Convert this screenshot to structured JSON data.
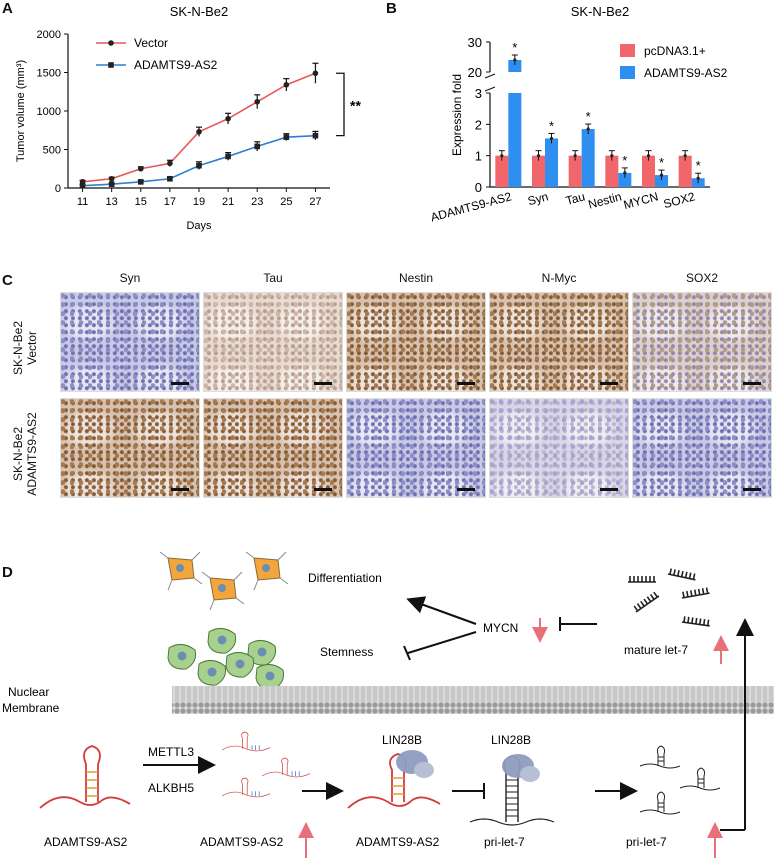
{
  "panels": {
    "a": "A",
    "b": "B",
    "c": "C",
    "d": "D"
  },
  "chart_data": [
    {
      "type": "line",
      "title": "SK-N-Be2",
      "xlabel": "Days",
      "ylabel": "Tumor volume (mm³)",
      "x": [
        11,
        13,
        15,
        17,
        19,
        21,
        23,
        25,
        27
      ],
      "x_ticks": [
        "11",
        "13",
        "15",
        "17",
        "19",
        "21",
        "23",
        "25",
        "27"
      ],
      "ylim": [
        0,
        2000
      ],
      "y_ticks": [
        "0",
        "500",
        "1000",
        "1500",
        "2000"
      ],
      "series": [
        {
          "name": "Vector",
          "color": "#e8575a",
          "marker": "circle",
          "values": [
            80,
            120,
            250,
            320,
            730,
            900,
            1120,
            1340,
            1490
          ],
          "errors": [
            20,
            20,
            25,
            40,
            60,
            70,
            90,
            80,
            130
          ]
        },
        {
          "name": "ADAMTS9-AS2",
          "color": "#2f7fd1",
          "marker": "square",
          "values": [
            30,
            50,
            80,
            120,
            290,
            410,
            540,
            660,
            680
          ],
          "errors": [
            10,
            10,
            15,
            20,
            50,
            50,
            60,
            45,
            55
          ]
        }
      ],
      "significance": "**",
      "legend": "top-left"
    },
    {
      "type": "bar",
      "title": "SK-N-Be2",
      "ylabel": "Expression fold",
      "categories": [
        "ADAMTS9-AS2",
        "Syn",
        "Tau",
        "Nestin",
        "MYCN",
        "SOX2"
      ],
      "series": [
        {
          "name": "pcDNA3.1+",
          "color": "#f0666a",
          "values": [
            1.0,
            1.0,
            1.0,
            1.0,
            1.0,
            1.0
          ]
        },
        {
          "name": "ADAMTS9-AS2",
          "color": "#2f8ff0",
          "values": [
            24,
            1.55,
            1.85,
            0.45,
            0.38,
            0.28
          ]
        }
      ],
      "y_ticks_lower": [
        "0",
        "1",
        "2",
        "3"
      ],
      "y_ticks_upper": [
        "20",
        "30"
      ],
      "significance": [
        "*",
        "*",
        "*",
        "*",
        "*",
        "*"
      ],
      "legend": "top-right"
    }
  ],
  "ihc": {
    "columns": [
      "Syn",
      "Tau",
      "Nestin",
      "N-Myc",
      "SOX2"
    ],
    "rows": [
      {
        "line1": "SK-N-Be2",
        "line2": "Vector",
        "tones": [
          "blue",
          "beige",
          "brown",
          "brown",
          "brown-light"
        ]
      },
      {
        "line1": "SK-N-Be2",
        "line2": "ADAMTS9-AS2",
        "tones": [
          "brown",
          "brown",
          "blue",
          "blue-light",
          "blue"
        ]
      }
    ]
  },
  "diagram": {
    "differentiation": "Differentiation",
    "stemness": "Stemness",
    "mycn": "MYCN",
    "mature_let7": "mature let-7",
    "nuclear_membrane_1": "Nuclear",
    "nuclear_membrane_2": "Membrane",
    "mettl3": "METTL3",
    "alkbh5": "ALKBH5",
    "lin28b_1": "LIN28B",
    "lin28b_2": "LIN28B",
    "adamts_1": "ADAMTS9-AS2",
    "adamts_2": "ADAMTS9-AS2",
    "adamts_3": "ADAMTS9-AS2",
    "pri_let7_1": "pri-let-7",
    "pri_let7_2": "pri-let-7"
  }
}
